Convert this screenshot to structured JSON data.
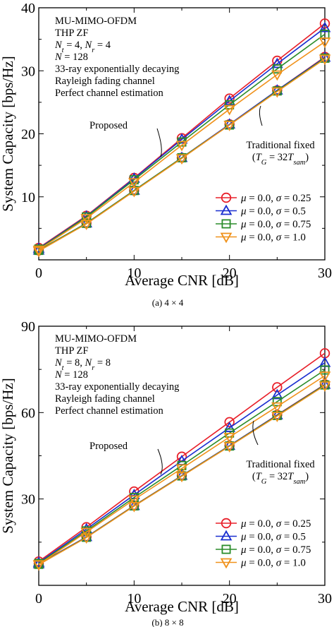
{
  "chart_data": [
    {
      "type": "line",
      "caption": "(a)  4 × 4",
      "xlabel": "Average CNR [dB]",
      "ylabel": "System Capacity [bps/Hz]",
      "xlim": [
        0,
        30
      ],
      "ylim": [
        0,
        40
      ],
      "xticks": [
        "0",
        "10",
        "20",
        "30"
      ],
      "yticks": [
        "10",
        "20",
        "30",
        "40"
      ],
      "info_lines": [
        "MU-MIMO-OFDM",
        "THP ZF",
        "Nt = 4, Nr = 4",
        "N = 128",
        "33-ray exponentially decaying",
        "Rayleigh fading channel",
        "Perfect channel estimation"
      ],
      "annotations": {
        "proposed": "Proposed",
        "traditional": "Traditional fixed",
        "traditional_sub": "(TG = 32Tsam)"
      },
      "legend_position": "bottom-right",
      "x": [
        0,
        5,
        10,
        15,
        20,
        25,
        30
      ],
      "series": [
        {
          "name": "μ = 0.0, σ = 0.25",
          "color": "#e8202a",
          "marker": "circle",
          "proposed": [
            1.9,
            7.0,
            13.0,
            19.3,
            25.6,
            31.6,
            37.5
          ],
          "traditional": [
            1.5,
            5.8,
            11.0,
            16.2,
            21.5,
            26.9,
            32.2
          ]
        },
        {
          "name": "μ = 0.0, σ = 0.5",
          "color": "#1a2fd0",
          "marker": "triangle-up",
          "proposed": [
            1.8,
            6.9,
            12.9,
            19.1,
            25.2,
            31.1,
            36.8
          ],
          "traditional": [
            1.5,
            5.8,
            11.0,
            16.2,
            21.5,
            26.9,
            32.1
          ]
        },
        {
          "name": "μ = 0.0, σ = 0.75",
          "color": "#2a8c2a",
          "marker": "square",
          "proposed": [
            1.7,
            6.8,
            12.7,
            18.7,
            24.6,
            30.3,
            35.8
          ],
          "traditional": [
            1.5,
            5.8,
            11.0,
            16.2,
            21.4,
            26.8,
            32.0
          ]
        },
        {
          "name": "μ = 0.0, σ = 1.0",
          "color": "#f0921c",
          "marker": "triangle-down",
          "proposed": [
            1.6,
            6.6,
            12.3,
            18.2,
            23.9,
            29.4,
            34.6
          ],
          "traditional": [
            1.4,
            5.7,
            10.9,
            16.1,
            21.4,
            26.7,
            31.9
          ]
        }
      ]
    },
    {
      "type": "line",
      "caption": "(b)  8 × 8",
      "xlabel": "Average CNR [dB]",
      "ylabel": "System Capacity [bps/Hz]",
      "xlim": [
        0,
        30
      ],
      "ylim": [
        0,
        90
      ],
      "xticks": [
        "0",
        "10",
        "20",
        "30"
      ],
      "yticks": [
        "30",
        "60",
        "90"
      ],
      "info_lines": [
        "MU-MIMO-OFDM",
        "THP ZF",
        "Nt = 8, Nr = 8",
        "N = 128",
        "33-ray exponentially decaying",
        "Rayleigh fading channel",
        "Perfect channel estimation"
      ],
      "annotations": {
        "proposed": "Proposed",
        "traditional": "Traditional fixed",
        "traditional_sub": "(TG = 32Tsam)"
      },
      "legend_position": "bottom-right",
      "x": [
        0,
        5,
        10,
        15,
        20,
        25,
        30
      ],
      "series": [
        {
          "name": "μ = 0.0, σ = 0.25",
          "color": "#e8202a",
          "marker": "circle",
          "proposed": [
            8.3,
            20.2,
            32.6,
            44.7,
            56.7,
            68.8,
            80.6
          ],
          "traditional": [
            7.5,
            16.8,
            27.7,
            38.1,
            48.5,
            59.2,
            69.8
          ]
        },
        {
          "name": "μ = 0.0, σ = 0.5",
          "color": "#1a2fd0",
          "marker": "triangle-up",
          "proposed": [
            7.9,
            19.5,
            31.4,
            43.2,
            54.7,
            66.1,
            77.3
          ],
          "traditional": [
            7.4,
            16.8,
            27.6,
            38.1,
            48.5,
            59.1,
            69.7
          ]
        },
        {
          "name": "μ = 0.0, σ = 0.75",
          "color": "#2a8c2a",
          "marker": "square",
          "proposed": [
            7.6,
            18.9,
            30.5,
            41.6,
            52.9,
            63.8,
            74.8
          ],
          "traditional": [
            7.3,
            16.7,
            27.6,
            38.0,
            48.4,
            59.0,
            69.6
          ]
        },
        {
          "name": "μ = 0.0, σ = 1.0",
          "color": "#f0921c",
          "marker": "triangle-down",
          "proposed": [
            7.3,
            18.5,
            29.8,
            40.6,
            51.5,
            62.1,
            72.8
          ],
          "traditional": [
            7.2,
            16.6,
            27.5,
            37.9,
            48.3,
            58.8,
            69.4
          ]
        }
      ]
    }
  ]
}
